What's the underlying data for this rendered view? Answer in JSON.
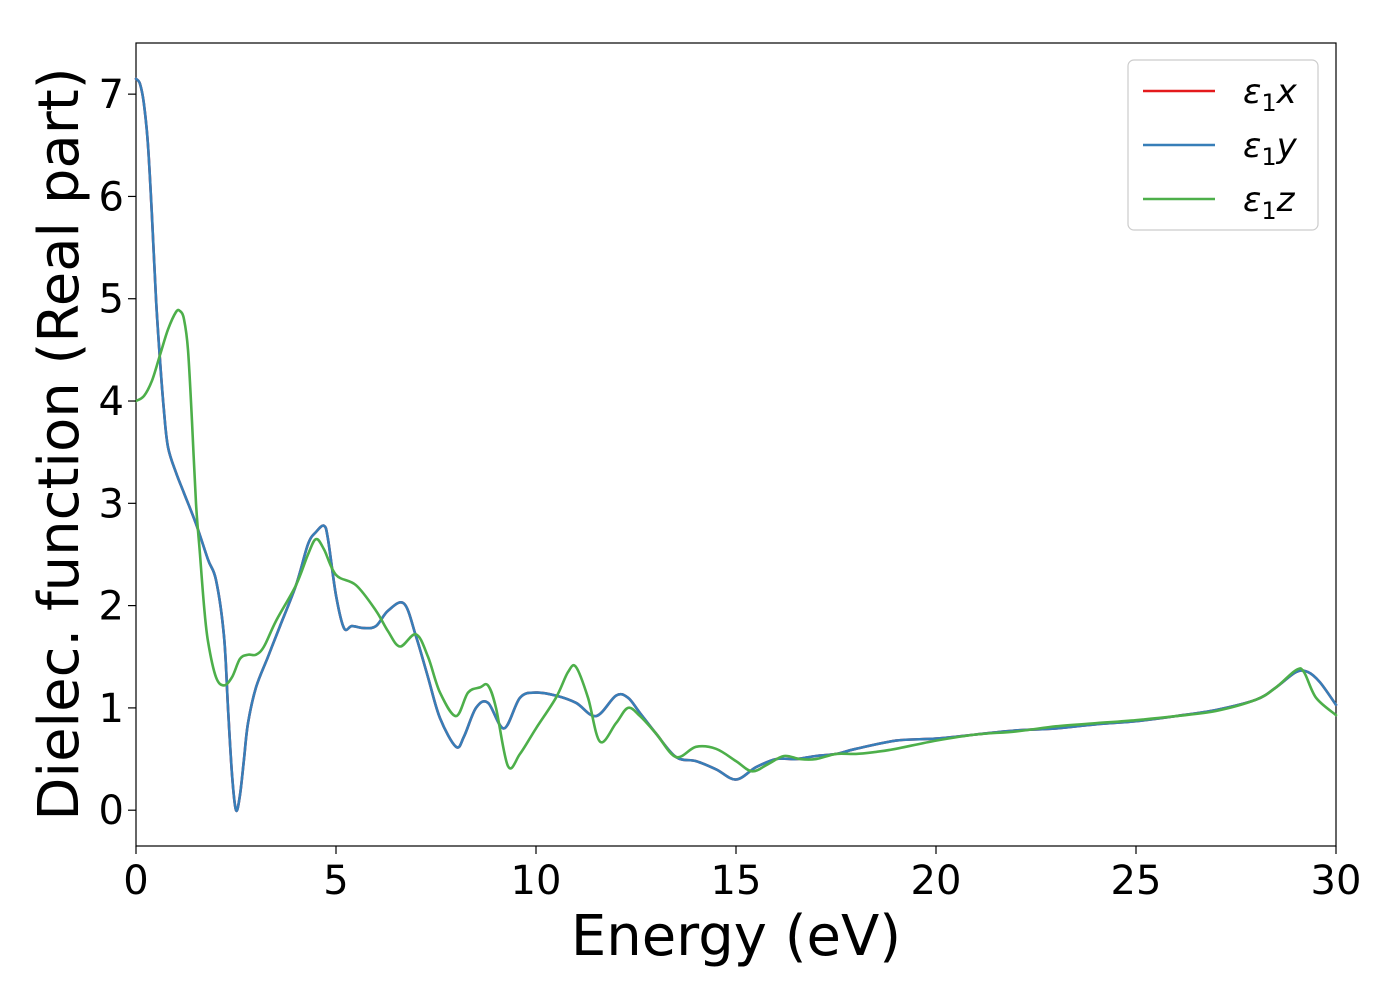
{
  "chart_data": {
    "type": "line",
    "xlabel": "Energy (eV)",
    "ylabel": "Dielec. function (Real part)",
    "xlim": [
      0,
      30
    ],
    "ylim": [
      -0.35,
      7.5
    ],
    "xticks": [
      0,
      5,
      10,
      15,
      20,
      25,
      30
    ],
    "yticks": [
      0,
      1,
      2,
      3,
      4,
      5,
      6,
      7
    ],
    "grid": false,
    "legend_position": "top-right",
    "series": [
      {
        "id": "x",
        "name_base": "ε",
        "name_sub": "1",
        "name_var": "x",
        "color": "#e41a1c",
        "x": [
          0,
          0.1,
          0.2,
          0.3,
          0.4,
          0.5,
          0.6,
          0.7,
          0.8,
          1.0,
          1.2,
          1.5,
          1.8,
          2.0,
          2.2,
          2.3,
          2.4,
          2.5,
          2.6,
          2.7,
          2.8,
          3.0,
          3.3,
          3.6,
          4.0,
          4.3,
          4.5,
          4.7,
          4.8,
          5.0,
          5.2,
          5.4,
          5.7,
          6.0,
          6.3,
          6.7,
          7.0,
          7.3,
          7.6,
          8.0,
          8.2,
          8.5,
          8.8,
          9.2,
          9.6,
          10.0,
          10.5,
          11.0,
          11.5,
          12.0,
          12.3,
          12.6,
          13.0,
          13.5,
          14.0,
          14.5,
          15.0,
          15.5,
          16.0,
          16.5,
          17.0,
          17.5,
          18.0,
          19.0,
          20.0,
          21.0,
          22.0,
          23.0,
          24.0,
          25.0,
          26.0,
          27.0,
          28.0,
          28.5,
          29.0,
          29.3,
          29.6,
          30.0
        ],
        "y": [
          7.15,
          7.1,
          6.9,
          6.5,
          5.8,
          5.0,
          4.4,
          3.9,
          3.55,
          3.3,
          3.1,
          2.8,
          2.45,
          2.25,
          1.7,
          1.0,
          0.35,
          0.0,
          0.15,
          0.5,
          0.85,
          1.2,
          1.5,
          1.8,
          2.2,
          2.6,
          2.72,
          2.78,
          2.65,
          2.1,
          1.78,
          1.8,
          1.78,
          1.8,
          1.95,
          2.02,
          1.7,
          1.3,
          0.9,
          0.62,
          0.72,
          1.0,
          1.05,
          0.8,
          1.1,
          1.15,
          1.12,
          1.05,
          0.92,
          1.12,
          1.1,
          0.95,
          0.75,
          0.52,
          0.48,
          0.4,
          0.3,
          0.42,
          0.5,
          0.5,
          0.53,
          0.55,
          0.6,
          0.68,
          0.7,
          0.74,
          0.78,
          0.8,
          0.84,
          0.87,
          0.92,
          0.98,
          1.08,
          1.2,
          1.35,
          1.35,
          1.25,
          1.03
        ]
      },
      {
        "id": "y",
        "name_base": "ε",
        "name_sub": "1",
        "name_var": "y",
        "color": "#377eb8",
        "x": [
          0,
          0.1,
          0.2,
          0.3,
          0.4,
          0.5,
          0.6,
          0.7,
          0.8,
          1.0,
          1.2,
          1.5,
          1.8,
          2.0,
          2.2,
          2.3,
          2.4,
          2.5,
          2.6,
          2.7,
          2.8,
          3.0,
          3.3,
          3.6,
          4.0,
          4.3,
          4.5,
          4.7,
          4.8,
          5.0,
          5.2,
          5.4,
          5.7,
          6.0,
          6.3,
          6.7,
          7.0,
          7.3,
          7.6,
          8.0,
          8.2,
          8.5,
          8.8,
          9.2,
          9.6,
          10.0,
          10.5,
          11.0,
          11.5,
          12.0,
          12.3,
          12.6,
          13.0,
          13.5,
          14.0,
          14.5,
          15.0,
          15.5,
          16.0,
          16.5,
          17.0,
          17.5,
          18.0,
          19.0,
          20.0,
          21.0,
          22.0,
          23.0,
          24.0,
          25.0,
          26.0,
          27.0,
          28.0,
          28.5,
          29.0,
          29.3,
          29.6,
          30.0
        ],
        "y": [
          7.15,
          7.1,
          6.9,
          6.5,
          5.8,
          5.0,
          4.4,
          3.9,
          3.55,
          3.3,
          3.1,
          2.8,
          2.45,
          2.25,
          1.7,
          1.0,
          0.35,
          0.0,
          0.15,
          0.5,
          0.85,
          1.2,
          1.5,
          1.8,
          2.2,
          2.6,
          2.72,
          2.78,
          2.65,
          2.1,
          1.78,
          1.8,
          1.78,
          1.8,
          1.95,
          2.02,
          1.7,
          1.3,
          0.9,
          0.62,
          0.72,
          1.0,
          1.05,
          0.8,
          1.1,
          1.15,
          1.12,
          1.05,
          0.92,
          1.12,
          1.1,
          0.95,
          0.75,
          0.52,
          0.48,
          0.4,
          0.3,
          0.42,
          0.5,
          0.5,
          0.53,
          0.55,
          0.6,
          0.68,
          0.7,
          0.74,
          0.78,
          0.8,
          0.84,
          0.87,
          0.92,
          0.98,
          1.08,
          1.2,
          1.35,
          1.35,
          1.25,
          1.03
        ]
      },
      {
        "id": "z",
        "name_base": "ε",
        "name_sub": "1",
        "name_var": "z",
        "color": "#4daf4a",
        "x": [
          0,
          0.2,
          0.4,
          0.6,
          0.8,
          1.0,
          1.1,
          1.2,
          1.3,
          1.4,
          1.5,
          1.6,
          1.7,
          1.8,
          2.0,
          2.2,
          2.4,
          2.6,
          2.8,
          3.0,
          3.2,
          3.5,
          4.0,
          4.3,
          4.5,
          4.7,
          5.0,
          5.5,
          6.0,
          6.3,
          6.6,
          7.0,
          7.3,
          7.6,
          8.0,
          8.3,
          8.6,
          8.8,
          9.0,
          9.3,
          9.6,
          10.0,
          10.5,
          10.8,
          11.0,
          11.3,
          11.6,
          12.0,
          12.3,
          12.6,
          13.0,
          13.5,
          14.0,
          14.5,
          15.0,
          15.4,
          15.8,
          16.2,
          16.6,
          17.0,
          17.5,
          18.0,
          18.5,
          19.0,
          20.0,
          21.0,
          22.0,
          23.0,
          24.0,
          25.0,
          26.0,
          27.0,
          28.0,
          28.5,
          29.0,
          29.2,
          29.5,
          30.0
        ],
        "y": [
          4.0,
          4.05,
          4.2,
          4.45,
          4.7,
          4.87,
          4.88,
          4.8,
          4.5,
          3.8,
          3.0,
          2.5,
          2.0,
          1.65,
          1.3,
          1.22,
          1.3,
          1.48,
          1.52,
          1.52,
          1.6,
          1.85,
          2.2,
          2.5,
          2.65,
          2.55,
          2.3,
          2.2,
          1.95,
          1.75,
          1.6,
          1.72,
          1.5,
          1.15,
          0.92,
          1.15,
          1.2,
          1.22,
          1.0,
          0.43,
          0.55,
          0.8,
          1.1,
          1.35,
          1.4,
          1.1,
          0.67,
          0.85,
          1.0,
          0.92,
          0.75,
          0.52,
          0.62,
          0.6,
          0.48,
          0.38,
          0.45,
          0.53,
          0.5,
          0.5,
          0.55,
          0.55,
          0.57,
          0.6,
          0.68,
          0.74,
          0.77,
          0.82,
          0.85,
          0.88,
          0.92,
          0.97,
          1.08,
          1.2,
          1.37,
          1.35,
          1.1,
          0.93
        ]
      }
    ]
  }
}
